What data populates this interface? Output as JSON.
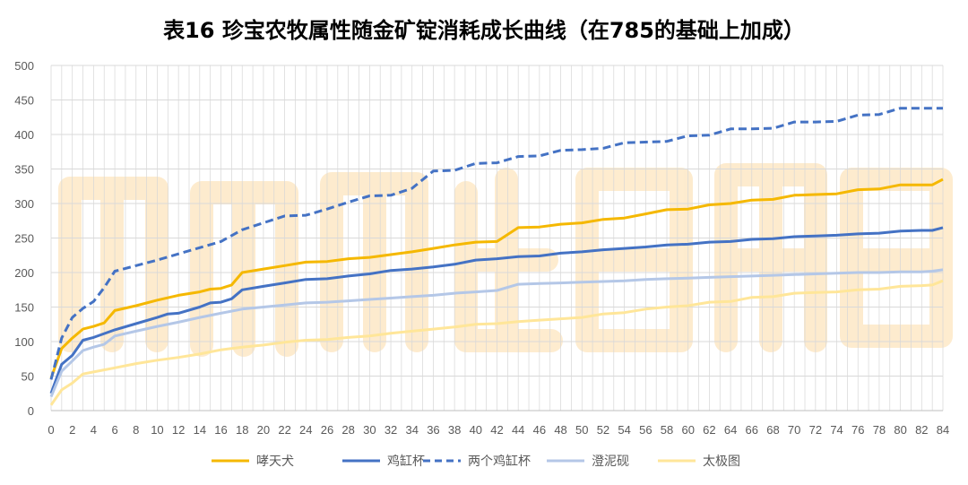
{
  "chart_data": {
    "type": "line",
    "title": "表16 珍宝农牧属性随金矿锭消耗成长曲线（在785的基础上加成）",
    "xlabel": "",
    "ylabel": "",
    "xlim": [
      0,
      84
    ],
    "ylim": [
      0,
      500
    ],
    "y_ticks": [
      "0",
      "50",
      "100",
      "150",
      "200",
      "250",
      "300",
      "350",
      "400",
      "450",
      "500"
    ],
    "x_ticks": [
      "0",
      "2",
      "4",
      "6",
      "8",
      "10",
      "12",
      "14",
      "16",
      "18",
      "20",
      "22",
      "24",
      "26",
      "28",
      "30",
      "32",
      "34",
      "36",
      "38",
      "40",
      "42",
      "44",
      "46",
      "48",
      "50",
      "52",
      "54",
      "56",
      "58",
      "60",
      "62",
      "64",
      "66",
      "68",
      "70",
      "72",
      "74",
      "76",
      "78",
      "80",
      "82",
      "84"
    ],
    "grid": "horizontal",
    "legend_position": "bottom",
    "colors": {
      "哮天犬": "#F5B800",
      "鸡缸杯": "#4472C4",
      "两个鸡缸杯": "#4472C4",
      "澄泥砚": "#B4C7E7",
      "太极图": "#FFE699",
      "watermark": "#F9A825"
    },
    "series": [
      {
        "name": "哮天犬",
        "style": "solid",
        "points": [
          [
            0,
            47
          ],
          [
            1,
            90
          ],
          [
            2,
            105
          ],
          [
            3,
            118
          ],
          [
            4,
            122
          ],
          [
            5,
            127
          ],
          [
            6,
            145
          ],
          [
            8,
            152
          ],
          [
            10,
            160
          ],
          [
            12,
            167
          ],
          [
            14,
            172
          ],
          [
            15,
            176
          ],
          [
            16,
            177
          ],
          [
            17,
            182
          ],
          [
            18,
            200
          ],
          [
            20,
            205
          ],
          [
            22,
            210
          ],
          [
            24,
            215
          ],
          [
            26,
            216
          ],
          [
            28,
            220
          ],
          [
            30,
            222
          ],
          [
            32,
            226
          ],
          [
            34,
            230
          ],
          [
            36,
            235
          ],
          [
            38,
            240
          ],
          [
            40,
            244
          ],
          [
            42,
            245
          ],
          [
            44,
            265
          ],
          [
            46,
            266
          ],
          [
            48,
            270
          ],
          [
            50,
            272
          ],
          [
            52,
            277
          ],
          [
            54,
            279
          ],
          [
            56,
            285
          ],
          [
            58,
            291
          ],
          [
            60,
            292
          ],
          [
            62,
            298
          ],
          [
            64,
            300
          ],
          [
            66,
            305
          ],
          [
            68,
            306
          ],
          [
            70,
            312
          ],
          [
            72,
            313
          ],
          [
            74,
            314
          ],
          [
            76,
            320
          ],
          [
            78,
            321
          ],
          [
            80,
            327
          ],
          [
            82,
            327
          ],
          [
            83,
            327
          ],
          [
            84,
            335
          ]
        ]
      },
      {
        "name": "鸡缸杯",
        "style": "solid",
        "points": [
          [
            0,
            25
          ],
          [
            1,
            67
          ],
          [
            2,
            80
          ],
          [
            3,
            102
          ],
          [
            4,
            106
          ],
          [
            6,
            117
          ],
          [
            8,
            126
          ],
          [
            10,
            135
          ],
          [
            11,
            140
          ],
          [
            12,
            141
          ],
          [
            14,
            150
          ],
          [
            15,
            156
          ],
          [
            16,
            157
          ],
          [
            17,
            162
          ],
          [
            18,
            175
          ],
          [
            20,
            180
          ],
          [
            22,
            185
          ],
          [
            24,
            190
          ],
          [
            26,
            191
          ],
          [
            28,
            195
          ],
          [
            30,
            198
          ],
          [
            32,
            203
          ],
          [
            34,
            205
          ],
          [
            36,
            208
          ],
          [
            38,
            212
          ],
          [
            40,
            218
          ],
          [
            42,
            220
          ],
          [
            44,
            223
          ],
          [
            46,
            224
          ],
          [
            48,
            228
          ],
          [
            50,
            230
          ],
          [
            52,
            233
          ],
          [
            54,
            235
          ],
          [
            56,
            237
          ],
          [
            58,
            240
          ],
          [
            60,
            241
          ],
          [
            62,
            244
          ],
          [
            64,
            245
          ],
          [
            66,
            248
          ],
          [
            68,
            249
          ],
          [
            70,
            252
          ],
          [
            72,
            253
          ],
          [
            74,
            254
          ],
          [
            76,
            256
          ],
          [
            78,
            257
          ],
          [
            80,
            260
          ],
          [
            82,
            261
          ],
          [
            83,
            261
          ],
          [
            84,
            265
          ]
        ]
      },
      {
        "name": "两个鸡缸杯",
        "style": "dashed",
        "points": [
          [
            0,
            45
          ],
          [
            1,
            105
          ],
          [
            2,
            135
          ],
          [
            3,
            148
          ],
          [
            4,
            158
          ],
          [
            5,
            178
          ],
          [
            6,
            202
          ],
          [
            8,
            210
          ],
          [
            10,
            218
          ],
          [
            12,
            227
          ],
          [
            14,
            236
          ],
          [
            16,
            245
          ],
          [
            18,
            262
          ],
          [
            20,
            272
          ],
          [
            22,
            282
          ],
          [
            24,
            283
          ],
          [
            26,
            292
          ],
          [
            28,
            302
          ],
          [
            30,
            311
          ],
          [
            32,
            312
          ],
          [
            34,
            322
          ],
          [
            36,
            347
          ],
          [
            38,
            348
          ],
          [
            40,
            358
          ],
          [
            42,
            359
          ],
          [
            44,
            368
          ],
          [
            46,
            369
          ],
          [
            48,
            377
          ],
          [
            50,
            378
          ],
          [
            52,
            380
          ],
          [
            54,
            388
          ],
          [
            56,
            389
          ],
          [
            58,
            390
          ],
          [
            60,
            398
          ],
          [
            62,
            399
          ],
          [
            64,
            408
          ],
          [
            66,
            408
          ],
          [
            68,
            409
          ],
          [
            70,
            418
          ],
          [
            72,
            418
          ],
          [
            74,
            419
          ],
          [
            76,
            428
          ],
          [
            78,
            429
          ],
          [
            80,
            438
          ],
          [
            82,
            438
          ],
          [
            84,
            438
          ]
        ]
      },
      {
        "name": "澄泥砚",
        "style": "solid",
        "points": [
          [
            0,
            20
          ],
          [
            1,
            57
          ],
          [
            2,
            72
          ],
          [
            3,
            87
          ],
          [
            4,
            92
          ],
          [
            5,
            96
          ],
          [
            6,
            108
          ],
          [
            8,
            115
          ],
          [
            10,
            122
          ],
          [
            12,
            128
          ],
          [
            14,
            135
          ],
          [
            16,
            141
          ],
          [
            18,
            147
          ],
          [
            20,
            150
          ],
          [
            22,
            153
          ],
          [
            24,
            156
          ],
          [
            26,
            157
          ],
          [
            28,
            159
          ],
          [
            30,
            161
          ],
          [
            32,
            163
          ],
          [
            34,
            165
          ],
          [
            36,
            167
          ],
          [
            38,
            170
          ],
          [
            40,
            172
          ],
          [
            42,
            174
          ],
          [
            44,
            183
          ],
          [
            46,
            184
          ],
          [
            48,
            185
          ],
          [
            50,
            186
          ],
          [
            52,
            187
          ],
          [
            54,
            188
          ],
          [
            56,
            190
          ],
          [
            58,
            191
          ],
          [
            60,
            192
          ],
          [
            62,
            193
          ],
          [
            64,
            194
          ],
          [
            66,
            195
          ],
          [
            68,
            196
          ],
          [
            70,
            197
          ],
          [
            72,
            198
          ],
          [
            74,
            199
          ],
          [
            76,
            200
          ],
          [
            78,
            200
          ],
          [
            80,
            201
          ],
          [
            82,
            201
          ],
          [
            83,
            202
          ],
          [
            84,
            204
          ]
        ]
      },
      {
        "name": "太极图",
        "style": "solid",
        "points": [
          [
            0,
            8
          ],
          [
            1,
            30
          ],
          [
            2,
            40
          ],
          [
            3,
            53
          ],
          [
            4,
            56
          ],
          [
            6,
            62
          ],
          [
            8,
            68
          ],
          [
            10,
            73
          ],
          [
            12,
            77
          ],
          [
            14,
            82
          ],
          [
            16,
            88
          ],
          [
            18,
            92
          ],
          [
            20,
            95
          ],
          [
            22,
            99
          ],
          [
            24,
            102
          ],
          [
            26,
            103
          ],
          [
            28,
            106
          ],
          [
            30,
            108
          ],
          [
            32,
            112
          ],
          [
            34,
            115
          ],
          [
            36,
            118
          ],
          [
            38,
            121
          ],
          [
            40,
            125
          ],
          [
            42,
            126
          ],
          [
            44,
            129
          ],
          [
            46,
            131
          ],
          [
            48,
            133
          ],
          [
            50,
            135
          ],
          [
            52,
            140
          ],
          [
            54,
            142
          ],
          [
            56,
            147
          ],
          [
            58,
            150
          ],
          [
            60,
            152
          ],
          [
            62,
            157
          ],
          [
            64,
            158
          ],
          [
            66,
            164
          ],
          [
            68,
            165
          ],
          [
            70,
            170
          ],
          [
            72,
            171
          ],
          [
            74,
            172
          ],
          [
            76,
            175
          ],
          [
            78,
            176
          ],
          [
            80,
            180
          ],
          [
            82,
            181
          ],
          [
            83,
            182
          ],
          [
            84,
            188
          ]
        ]
      }
    ]
  }
}
